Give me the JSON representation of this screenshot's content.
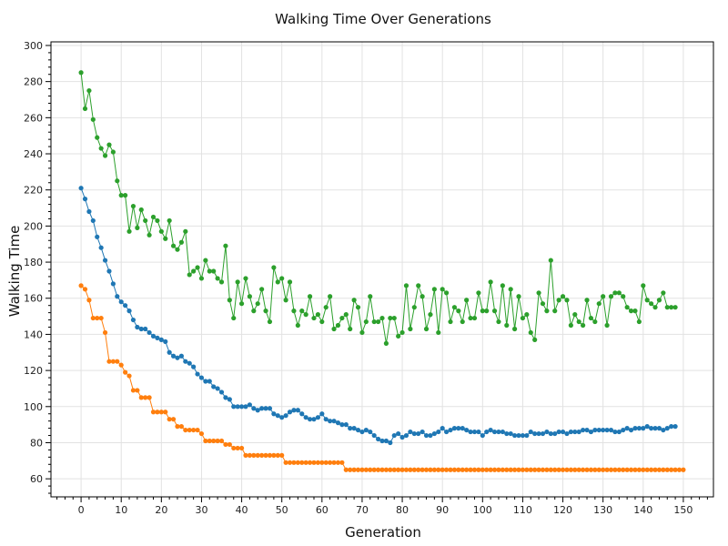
{
  "chart_data": {
    "type": "line",
    "title": "Walking Time Over Generations",
    "xlabel": "Generation",
    "ylabel": "Walking Time",
    "xlim": [
      -7.5,
      157.5
    ],
    "ylim": [
      50,
      302
    ],
    "x_ticks": [
      0,
      10,
      20,
      30,
      40,
      50,
      60,
      70,
      80,
      90,
      100,
      110,
      120,
      130,
      140,
      150
    ],
    "y_ticks": [
      60,
      80,
      100,
      120,
      140,
      160,
      180,
      200,
      220,
      240,
      260,
      280,
      300
    ],
    "grid": true,
    "legend": "none",
    "series": [
      {
        "color": "#2ca02c",
        "values": [
          285,
          265,
          275,
          259,
          249,
          243,
          239,
          245,
          241,
          225,
          217,
          217,
          197,
          211,
          199,
          209,
          203,
          195,
          205,
          203,
          197,
          193,
          203,
          189,
          187,
          191,
          197,
          173,
          175,
          177,
          171,
          181,
          175,
          175,
          171,
          169,
          189,
          159,
          149,
          169,
          157,
          171,
          161,
          153,
          157,
          165,
          153,
          147,
          177,
          169,
          171,
          159,
          169,
          153,
          145,
          153,
          151,
          161,
          149,
          151,
          147,
          155,
          161,
          143,
          145,
          149,
          151,
          143,
          159,
          155,
          141,
          147,
          161,
          147,
          147,
          149,
          135,
          149,
          149,
          139,
          141,
          167,
          143,
          155,
          167,
          161,
          143,
          151,
          165,
          141,
          165,
          163,
          147,
          155,
          153,
          147,
          159,
          149,
          149,
          163,
          153,
          153,
          169,
          153,
          147,
          167,
          145,
          165,
          143,
          161,
          149,
          151,
          141,
          137,
          163,
          157,
          153,
          181,
          153,
          159,
          161,
          159,
          145,
          151,
          147,
          145,
          159,
          149,
          147,
          157,
          161,
          145,
          161,
          163,
          163,
          161,
          155,
          153,
          153,
          147,
          167,
          159,
          157,
          155,
          159,
          163,
          155,
          155,
          155
        ]
      },
      {
        "color": "#1f77b4",
        "values": [
          221,
          215,
          208,
          203,
          194,
          188,
          181,
          175,
          168,
          161,
          158,
          156,
          153,
          148,
          144,
          143,
          143,
          141,
          139,
          138,
          137,
          136,
          130,
          128,
          127,
          128,
          125,
          124,
          122,
          118,
          116,
          114,
          114,
          111,
          110,
          108,
          105,
          104,
          100,
          100,
          100,
          100,
          101,
          99,
          98,
          99,
          99,
          99,
          96,
          95,
          94,
          95,
          97,
          98,
          98,
          96,
          94,
          93,
          93,
          94,
          96,
          93,
          92,
          92,
          91,
          90,
          90,
          88,
          88,
          87,
          86,
          87,
          86,
          84,
          82,
          81,
          81,
          80,
          84,
          85,
          83,
          84,
          86,
          85,
          85,
          86,
          84,
          84,
          85,
          86,
          88,
          86,
          87,
          88,
          88,
          88,
          87,
          86,
          86,
          86,
          84,
          86,
          87,
          86,
          86,
          86,
          85,
          85,
          84,
          84,
          84,
          84,
          86,
          85,
          85,
          85,
          86,
          85,
          85,
          86,
          86,
          85,
          86,
          86,
          86,
          87,
          87,
          86,
          87,
          87,
          87,
          87,
          87,
          86,
          86,
          87,
          88,
          87,
          88,
          88,
          88,
          89,
          88,
          88,
          88,
          87,
          88,
          89,
          89
        ]
      },
      {
        "color": "#ff7f0e",
        "values": [
          167,
          165,
          159,
          149,
          149,
          149,
          141,
          125,
          125,
          125,
          123,
          119,
          117,
          109,
          109,
          105,
          105,
          105,
          97,
          97,
          97,
          97,
          93,
          93,
          89,
          89,
          87,
          87,
          87,
          87,
          85,
          81,
          81,
          81,
          81,
          81,
          79,
          79,
          77,
          77,
          77,
          73,
          73,
          73,
          73,
          73,
          73,
          73,
          73,
          73,
          73,
          69,
          69,
          69,
          69,
          69,
          69,
          69,
          69,
          69,
          69,
          69,
          69,
          69,
          69,
          69,
          65,
          65,
          65,
          65,
          65,
          65,
          65,
          65,
          65,
          65,
          65,
          65,
          65,
          65,
          65,
          65,
          65,
          65,
          65,
          65,
          65,
          65,
          65,
          65,
          65,
          65,
          65,
          65,
          65,
          65,
          65,
          65,
          65,
          65,
          65,
          65,
          65,
          65,
          65,
          65,
          65,
          65,
          65,
          65,
          65,
          65,
          65,
          65,
          65,
          65,
          65,
          65,
          65,
          65,
          65,
          65,
          65,
          65,
          65,
          65,
          65,
          65,
          65,
          65,
          65,
          65,
          65,
          65,
          65,
          65,
          65,
          65,
          65,
          65,
          65,
          65,
          65,
          65,
          65,
          65,
          65,
          65,
          65,
          65,
          65
        ]
      }
    ]
  }
}
